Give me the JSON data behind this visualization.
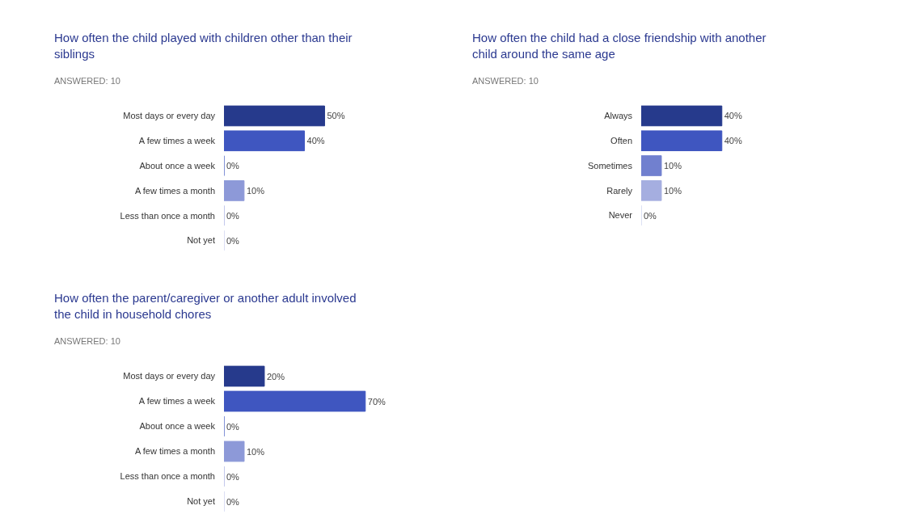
{
  "chart_data": [
    {
      "type": "bar",
      "orientation": "horizontal",
      "title": "How often the child played with children other than their siblings",
      "subtitle": "ANSWERED: 10",
      "categories": [
        "Most days or every day",
        "A few times a week",
        "About once a week",
        "A few times a month",
        "Less than once a month",
        "Not yet"
      ],
      "values": [
        50,
        40,
        0,
        10,
        0,
        0
      ],
      "value_labels": [
        "50%",
        "40%",
        "0%",
        "10%",
        "0%",
        "0%"
      ],
      "colors": [
        "#263a8c",
        "#3f56c0",
        "#5a6fc9",
        "#8d99d8",
        "#b0b8e5",
        "#cfd4ef"
      ],
      "tick_labels": "y"
    },
    {
      "type": "bar",
      "orientation": "horizontal",
      "title": "How often the child had a close friendship with another child around the same age",
      "subtitle": "ANSWERED: 10",
      "categories": [
        "Always",
        "Often",
        "Sometimes",
        "Rarely",
        "Never"
      ],
      "values": [
        40,
        40,
        10,
        10,
        0
      ],
      "value_labels": [
        "40%",
        "40%",
        "10%",
        "10%",
        "0%"
      ],
      "colors": [
        "#263a8c",
        "#3f56c0",
        "#7180cf",
        "#a5aee0",
        "#d0d5ef"
      ],
      "tick_labels": "y"
    },
    {
      "type": "bar",
      "orientation": "horizontal",
      "title": "How often the parent/caregiver or another adult involved the child in household chores",
      "subtitle": "ANSWERED: 10",
      "categories": [
        "Most days or every day",
        "A few times a week",
        "About once a week",
        "A few times a month",
        "Less than once a month",
        "Not yet"
      ],
      "values": [
        20,
        70,
        0,
        10,
        0,
        0
      ],
      "value_labels": [
        "20%",
        "70%",
        "0%",
        "10%",
        "0%",
        "0%"
      ],
      "colors": [
        "#263a8c",
        "#3f56c0",
        "#5a6fc9",
        "#8d99d8",
        "#b0b8e5",
        "#cfd4ef"
      ],
      "tick_labels": "y"
    }
  ]
}
